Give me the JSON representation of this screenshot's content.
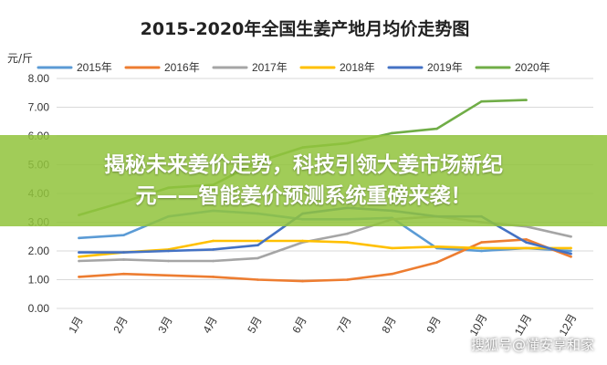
{
  "chart_data": {
    "type": "line",
    "title": "2015-2020年全国生姜产地月均价走势图",
    "ylabel": "元/斤",
    "xlabel": "",
    "ylim": [
      0,
      8
    ],
    "yticks": [
      "0.00",
      "1.00",
      "2.00",
      "3.00",
      "4.00",
      "5.00",
      "6.00",
      "7.00",
      "8.00"
    ],
    "categories": [
      "1月",
      "2月",
      "3月",
      "4月",
      "5月",
      "6月",
      "7月",
      "8月",
      "9月",
      "10月",
      "11月",
      "12月"
    ],
    "grid": true,
    "legend_position": "top",
    "series": [
      {
        "name": "2015年",
        "color": "#5B9BD5",
        "values": [
          2.45,
          2.55,
          3.2,
          3.4,
          3.3,
          3.1,
          3.1,
          3.15,
          2.1,
          2.0,
          2.1,
          2.0
        ]
      },
      {
        "name": "2016年",
        "color": "#ED7D31",
        "values": [
          1.1,
          1.2,
          1.15,
          1.1,
          1.0,
          0.95,
          1.0,
          1.2,
          1.6,
          2.3,
          2.4,
          1.8
        ]
      },
      {
        "name": "2017年",
        "color": "#A5A5A5",
        "values": [
          1.65,
          1.7,
          1.65,
          1.65,
          1.75,
          2.3,
          2.6,
          3.1,
          3.2,
          3.0,
          2.85,
          2.5
        ]
      },
      {
        "name": "2018年",
        "color": "#FFC000",
        "values": [
          1.8,
          1.95,
          2.05,
          2.35,
          2.35,
          2.35,
          2.3,
          2.1,
          2.15,
          2.1,
          2.1,
          2.1
        ]
      },
      {
        "name": "2019年",
        "color": "#4472C4",
        "values": [
          1.95,
          1.95,
          2.0,
          2.05,
          2.2,
          3.3,
          3.5,
          3.4,
          3.2,
          3.2,
          2.3,
          1.9
        ]
      },
      {
        "name": "2020年",
        "color": "#70AD47",
        "values": [
          3.25,
          3.7,
          4.2,
          4.3,
          5.1,
          5.6,
          5.75,
          6.1,
          6.25,
          7.2,
          7.25,
          null
        ]
      }
    ]
  },
  "banner": {
    "line1": "揭秘未来姜价走势，科技引领大姜市场新纪",
    "line2": "元——智能姜价预测系统重磅来袭！"
  },
  "watermark": "搜狐号@懂安享和家"
}
